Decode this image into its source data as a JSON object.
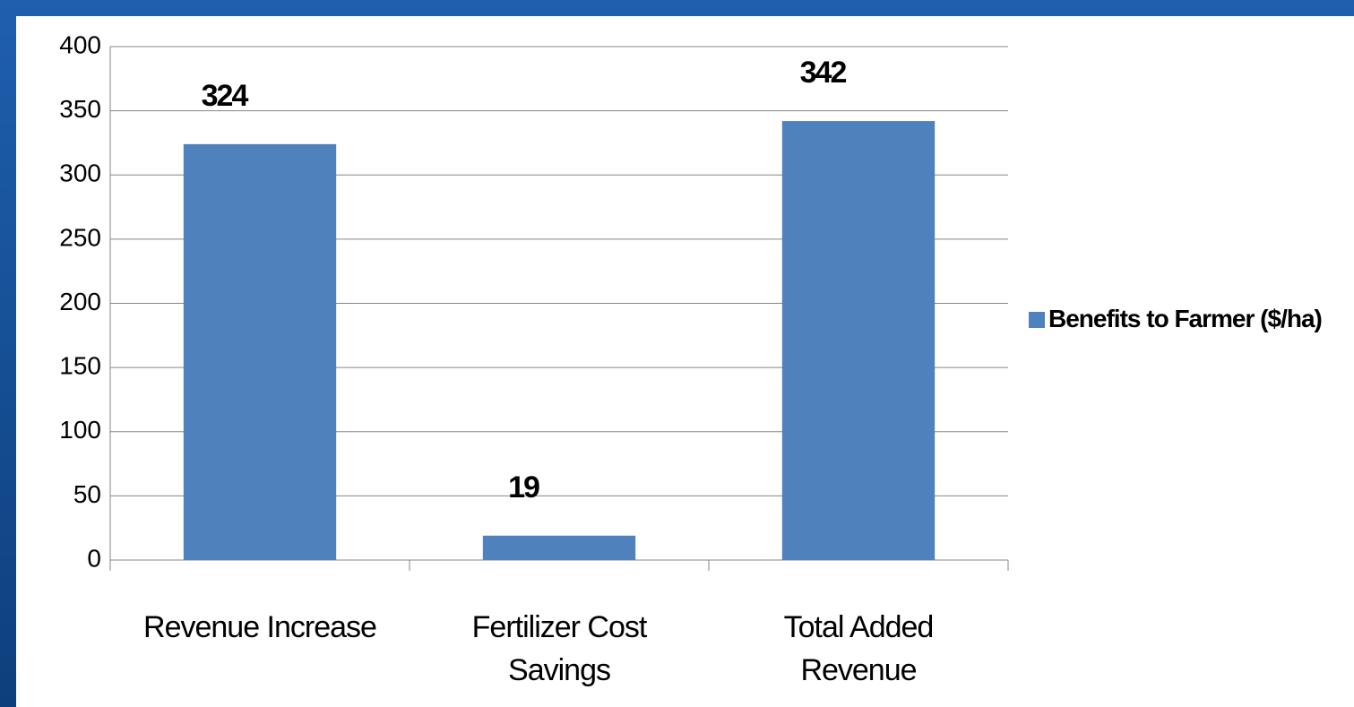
{
  "chart_data": {
    "type": "bar",
    "categories": [
      "Revenue Increase",
      "Fertilizer Cost Savings",
      "Total Added Revenue"
    ],
    "series": [
      {
        "name": "Benefits to Farmer ($/ha)",
        "color": "#4f81bd",
        "values": [
          324,
          19,
          342
        ]
      }
    ],
    "ylim": [
      0,
      400
    ],
    "yticks": [
      0,
      50,
      100,
      150,
      200,
      250,
      300,
      350,
      400
    ],
    "grid": true,
    "legend": "right",
    "data_labels": true
  }
}
